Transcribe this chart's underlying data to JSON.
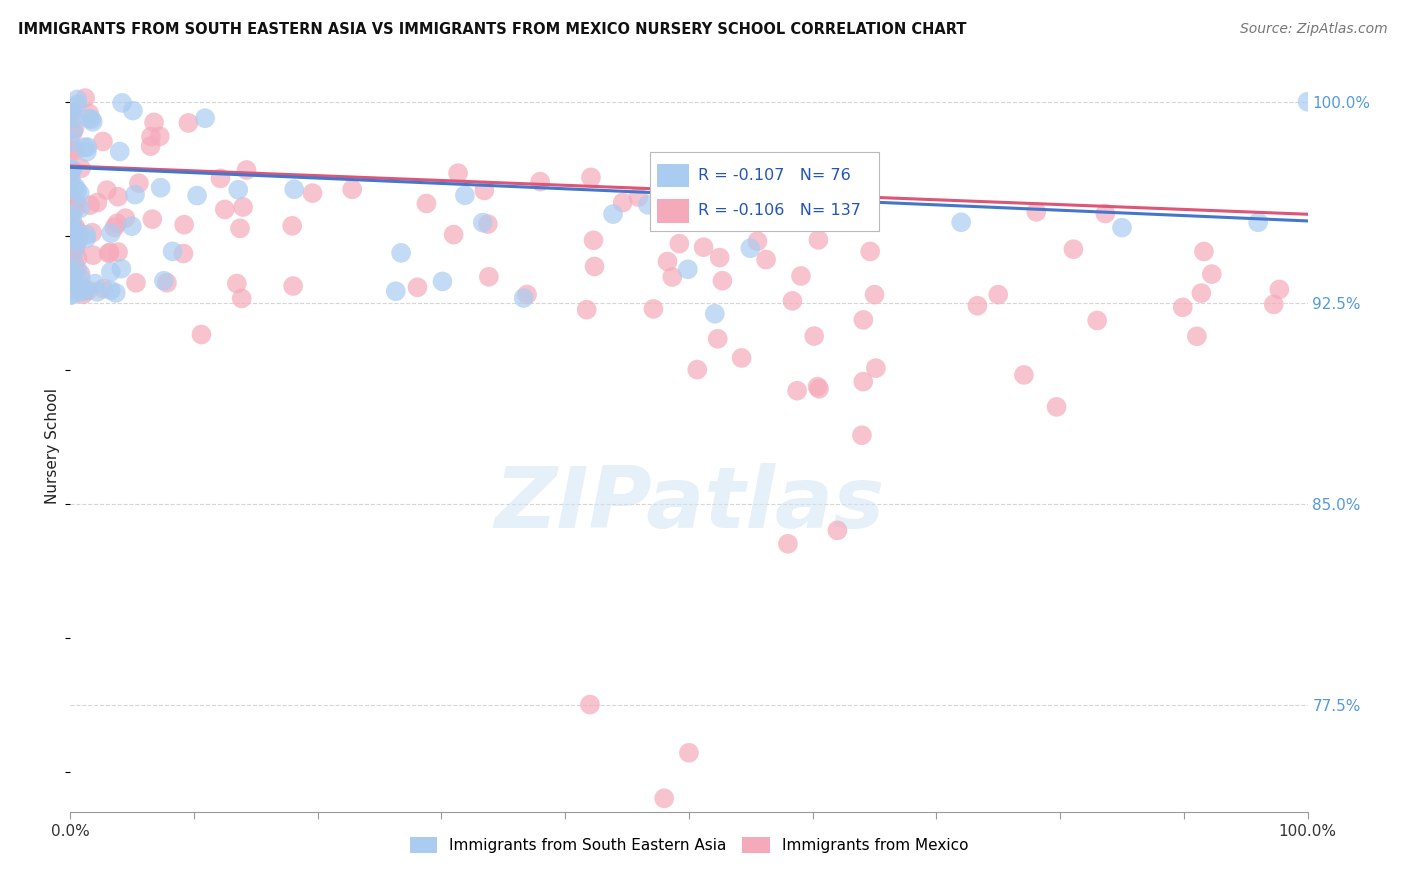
{
  "title": "IMMIGRANTS FROM SOUTH EASTERN ASIA VS IMMIGRANTS FROM MEXICO NURSERY SCHOOL CORRELATION CHART",
  "source": "Source: ZipAtlas.com",
  "ylabel": "Nursery School",
  "legend_label1": "Immigrants from South Eastern Asia",
  "legend_label2": "Immigrants from Mexico",
  "r1": "-0.107",
  "n1": "76",
  "r2": "-0.106",
  "n2": "137",
  "color1": "#aaccf0",
  "color2": "#f5aabb",
  "line_color1": "#4477cc",
  "line_color2": "#dd5577",
  "bg_color": "#ffffff",
  "grid_color": "#cccccc",
  "watermark_text": "ZIPatlas",
  "ytick_labels": [
    "77.5%",
    "85.0%",
    "92.5%",
    "100.0%"
  ],
  "ytick_values": [
    0.775,
    0.85,
    0.925,
    1.0
  ],
  "ytick_color": "#5599dd",
  "ylim_min": 0.735,
  "ylim_max": 1.008,
  "xlim_min": 0.0,
  "xlim_max": 1.0,
  "trend_x_start1": 0.0,
  "trend_x_end1": 1.0,
  "trend_y_start1": 0.9755,
  "trend_y_end1": 0.9555,
  "trend_x_start2": 0.0,
  "trend_x_end2": 1.0,
  "trend_y_start2": 0.976,
  "trend_y_end2": 0.958
}
